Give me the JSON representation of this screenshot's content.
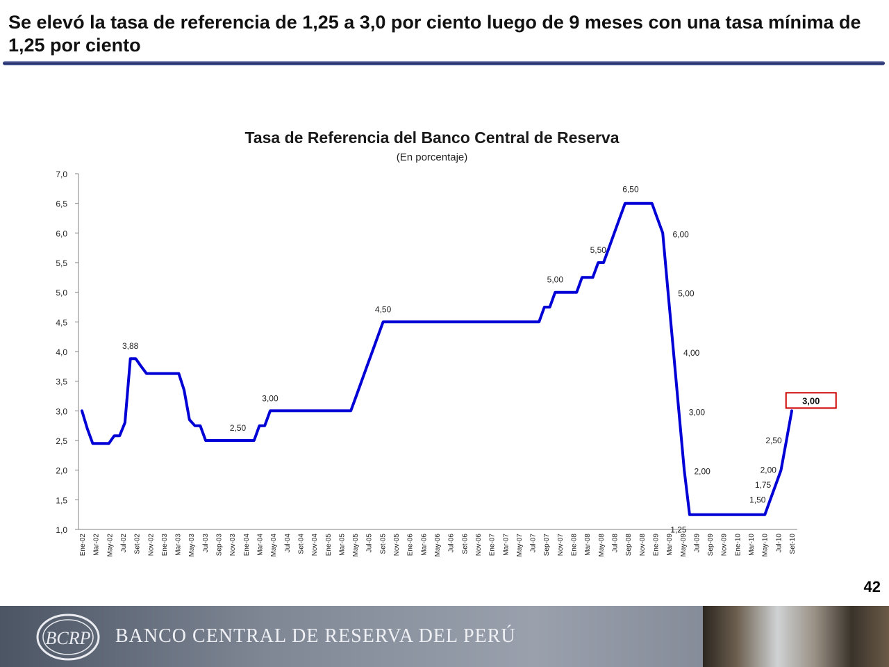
{
  "slide": {
    "headline": "Se elevó la tasa de referencia de 1,25 a 3,0 por ciento luego de 9 meses con una tasa mínima de 1,25 por ciento",
    "page_number": "42"
  },
  "footer": {
    "institution": "BANCO CENTRAL DE RESERVA DEL PERÚ",
    "logo_monogram": "BCRP"
  },
  "colors": {
    "line": "#0000d6",
    "highlight_box": "#cc0000",
    "title": "#1a1a1a"
  },
  "chart_data": {
    "type": "line",
    "title": "Tasa de Referencia del Banco Central de Reserva",
    "subtitle": "(En porcentaje)",
    "xlabel": "",
    "ylabel": "",
    "ylim": [
      1.0,
      7.0
    ],
    "y_ticks": [
      "1,0",
      "1,5",
      "2,0",
      "2,5",
      "3,0",
      "3,5",
      "4,0",
      "4,5",
      "5,0",
      "5,5",
      "6,0",
      "6,5",
      "7,0"
    ],
    "grid": false,
    "legend": "none",
    "x_tick_labels": [
      "Ene-02",
      "Mar-02",
      "May-02",
      "Jul-02",
      "Set-02",
      "Nov-02",
      "Ene-03",
      "Mar-03",
      "May-03",
      "Jul-03",
      "Sep-03",
      "Nov-03",
      "Ene-04",
      "Mar-04",
      "May-04",
      "Jul-04",
      "Set-04",
      "Nov-04",
      "Ene-05",
      "Mar-05",
      "May-05",
      "Jul-05",
      "Set-05",
      "Nov-05",
      "Ene-06",
      "Mar-06",
      "May-06",
      "Jul-06",
      "Set-06",
      "Nov-06",
      "Ene-07",
      "Mar-07",
      "May-07",
      "Jul-07",
      "Sep-07",
      "Nov-07",
      "Ene-08",
      "Mar-08",
      "May-08",
      "Jul-08",
      "Sep-08",
      "Nov-08",
      "Ene-09",
      "Mar-09",
      "May-09",
      "Jul-09",
      "Sep-09",
      "Nov-09",
      "Ene-10",
      "Mar-10",
      "May-10",
      "Jul-10",
      "Set-10"
    ],
    "series": [
      {
        "values": [
          3.0,
          2.7,
          2.45,
          2.45,
          2.45,
          2.45,
          2.58,
          2.58,
          2.8,
          3.88,
          3.88,
          3.75,
          3.63,
          3.63,
          3.63,
          3.63,
          3.63,
          3.63,
          3.63,
          3.35,
          2.85,
          2.75,
          2.75,
          2.5,
          2.5,
          2.5,
          2.5,
          2.5,
          2.5,
          2.5,
          2.5,
          2.5,
          2.5,
          2.75,
          2.75,
          3.0,
          3.0,
          3.0,
          3.0,
          3.0,
          3.0,
          3.0,
          3.0,
          3.0,
          3.0,
          3.0,
          3.0,
          3.0,
          3.0,
          3.0,
          3.0,
          3.25,
          3.5,
          3.75,
          4.0,
          4.25,
          4.5,
          4.5,
          4.5,
          4.5,
          4.5,
          4.5,
          4.5,
          4.5,
          4.5,
          4.5,
          4.5,
          4.5,
          4.5,
          4.5,
          4.5,
          4.5,
          4.5,
          4.5,
          4.5,
          4.5,
          4.5,
          4.5,
          4.5,
          4.5,
          4.5,
          4.5,
          4.5,
          4.5,
          4.5,
          4.5,
          4.75,
          4.75,
          5.0,
          5.0,
          5.0,
          5.0,
          5.0,
          5.25,
          5.25,
          5.25,
          5.5,
          5.5,
          5.75,
          6.0,
          6.25,
          6.5,
          6.5,
          6.5,
          6.5,
          6.5,
          6.5,
          6.25,
          6.0,
          5.0,
          4.0,
          3.0,
          2.0,
          1.25,
          1.25,
          1.25,
          1.25,
          1.25,
          1.25,
          1.25,
          1.25,
          1.25,
          1.25,
          1.25,
          1.25,
          1.25,
          1.25,
          1.25,
          1.5,
          1.75,
          2.0,
          2.5,
          3.0
        ]
      }
    ],
    "data_labels": [
      {
        "index": 9,
        "value": 3.88,
        "text": "3,88",
        "position": "above"
      },
      {
        "index": 29,
        "value": 2.5,
        "text": "2,50",
        "position": "above"
      },
      {
        "index": 35,
        "value": 3.0,
        "text": "3,00",
        "position": "above"
      },
      {
        "index": 56,
        "value": 4.5,
        "text": "4,50",
        "position": "above"
      },
      {
        "index": 88,
        "value": 5.0,
        "text": "5,00",
        "position": "above"
      },
      {
        "index": 96,
        "value": 5.5,
        "text": "5,50",
        "position": "above"
      },
      {
        "index": 101,
        "value": 6.5,
        "text": "6,50",
        "position": "above-right"
      },
      {
        "index": 108,
        "value": 6.0,
        "text": "6,00",
        "position": "right"
      },
      {
        "index": 109,
        "value": 5.0,
        "text": "5,00",
        "position": "right"
      },
      {
        "index": 110,
        "value": 4.0,
        "text": "4,00",
        "position": "right"
      },
      {
        "index": 111,
        "value": 3.0,
        "text": "3,00",
        "position": "right"
      },
      {
        "index": 112,
        "value": 2.0,
        "text": "2,00",
        "position": "right"
      },
      {
        "index": 113,
        "value": 1.25,
        "text": "1,25",
        "position": "below-left"
      },
      {
        "index": 129,
        "value": 1.5,
        "text": "1,50",
        "position": "left"
      },
      {
        "index": 130,
        "value": 1.75,
        "text": "1,75",
        "position": "left"
      },
      {
        "index": 131,
        "value": 2.0,
        "text": "2,00",
        "position": "left"
      },
      {
        "index": 132,
        "value": 2.5,
        "text": "2,50",
        "position": "left"
      },
      {
        "index": 133,
        "value": 3.0,
        "text": "3,00",
        "position": "boxed-right"
      }
    ]
  }
}
